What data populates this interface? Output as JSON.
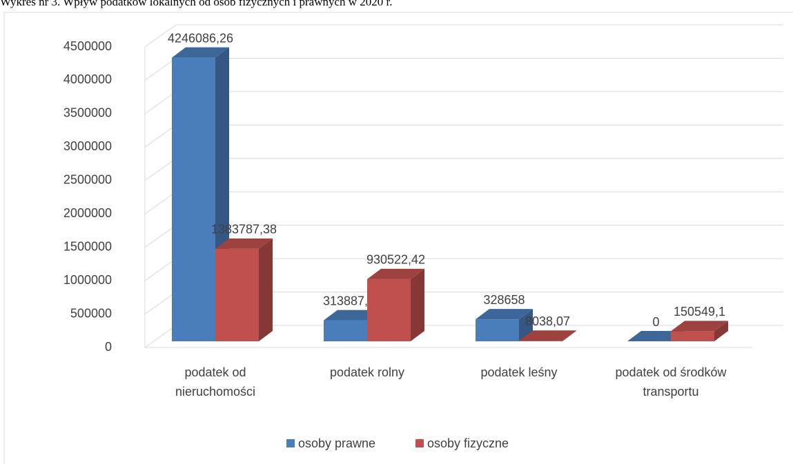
{
  "chart_data": {
    "type": "bar3d",
    "title": "Wykres nr 3. Wpływ podatków lokalnych od osób fizycznych i prawnych w 2020 r.",
    "categories": [
      "podatek od nieruchomości",
      "podatek rolny",
      "podatek leśny",
      "podatek od środków transportu"
    ],
    "series": [
      {
        "name": "osoby prawne",
        "color": "#4a7ebb",
        "values": [
          4246086.26,
          313887.66,
          328658,
          0
        ],
        "value_labels": [
          "4246086,26",
          "313887,66",
          "328658",
          "0"
        ]
      },
      {
        "name": "osoby fizyczne",
        "color": "#c0504d",
        "values": [
          1383787.38,
          930522.42,
          8038.07,
          150549.1
        ],
        "value_labels": [
          "1383787,38",
          "930522,42",
          "8038,07",
          "150549,1"
        ]
      }
    ],
    "ylim": [
      0,
      4500000
    ],
    "yticks": [
      0,
      500000,
      1000000,
      1500000,
      2000000,
      2500000,
      3000000,
      3500000,
      4000000,
      4500000
    ],
    "grid": true,
    "legend": "bottom"
  }
}
